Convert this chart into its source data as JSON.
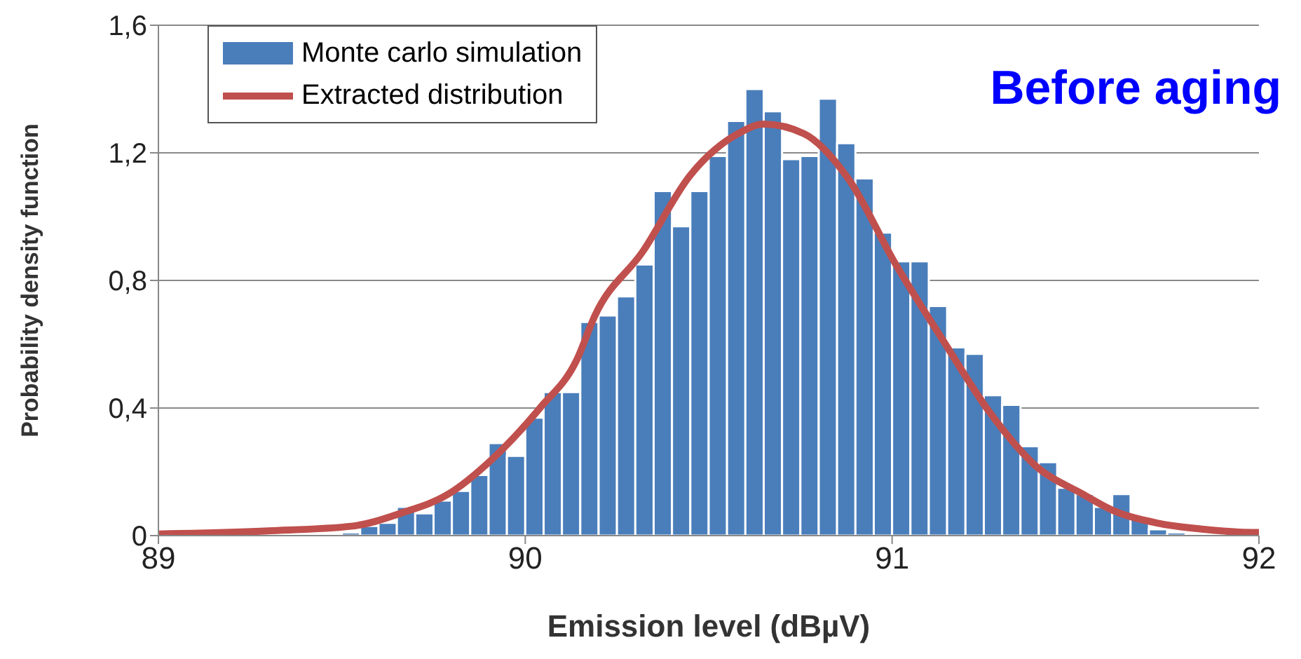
{
  "chart_data": {
    "type": "histogram",
    "xlabel": "Emission level (dBµV)",
    "ylabel": "Probability density function",
    "annotations": [
      "Before aging"
    ],
    "bins": [
      89.5,
      89.55,
      89.6,
      89.65,
      89.7,
      89.75,
      89.8,
      89.85,
      89.9,
      89.95,
      90.0,
      90.05,
      90.1,
      90.15,
      90.2,
      90.25,
      90.3,
      90.35,
      90.4,
      90.45,
      90.5,
      90.55,
      90.6,
      90.65,
      90.7,
      90.75,
      90.8,
      90.85,
      90.9,
      90.95,
      91.0,
      91.05,
      91.1,
      91.15,
      91.2,
      91.25,
      91.3,
      91.35,
      91.4,
      91.45,
      91.5,
      91.55,
      91.6,
      91.65,
      91.7,
      91.75,
      91.8
    ],
    "series": [
      {
        "name": "Monte carlo simulation",
        "color": "#4a7ebb",
        "values": [
          0.01,
          0.03,
          0.04,
          0.09,
          0.07,
          0.11,
          0.14,
          0.19,
          0.29,
          0.25,
          0.37,
          0.45,
          0.45,
          0.67,
          0.69,
          0.75,
          0.85,
          1.08,
          0.97,
          1.08,
          1.19,
          1.3,
          1.4,
          1.33,
          1.18,
          1.19,
          1.37,
          1.23,
          1.12,
          0.95,
          0.86,
          0.86,
          0.72,
          0.59,
          0.57,
          0.44,
          0.41,
          0.28,
          0.23,
          0.15,
          0.13,
          0.09,
          0.13,
          0.06,
          0.02,
          0.01
        ]
      },
      {
        "name": "Extracted distribution",
        "type": "line",
        "color": "#c0504d",
        "x": [
          89,
          89.3,
          89.53,
          89.66,
          89.79,
          89.91,
          90.04,
          90.14,
          90.19,
          90.32,
          90.45,
          90.58,
          90.65,
          90.76,
          90.88,
          91.01,
          91.14,
          91.27,
          91.39,
          91.52,
          91.6,
          91.72,
          91.85,
          91.98,
          92
        ],
        "values": [
          0.005,
          0.015,
          0.03,
          0.07,
          0.13,
          0.24,
          0.4,
          0.55,
          0.69,
          0.89,
          1.13,
          1.26,
          1.29,
          1.26,
          1.12,
          0.85,
          0.61,
          0.38,
          0.22,
          0.13,
          0.08,
          0.04,
          0.02,
          0.01,
          0.01
        ]
      }
    ],
    "xlim": [
      89,
      92
    ],
    "xticks": [
      89,
      90,
      91,
      92
    ],
    "ylim": [
      0,
      1.6
    ],
    "yticks": [
      0,
      {
        "value": 0.4,
        "label": "0,4"
      },
      {
        "value": 0.8,
        "label": "0,8"
      },
      {
        "value": 1.2,
        "label": "1,2"
      },
      {
        "value": 1.6,
        "label": "1,6"
      }
    ],
    "grid": "y",
    "legend": "top left"
  }
}
